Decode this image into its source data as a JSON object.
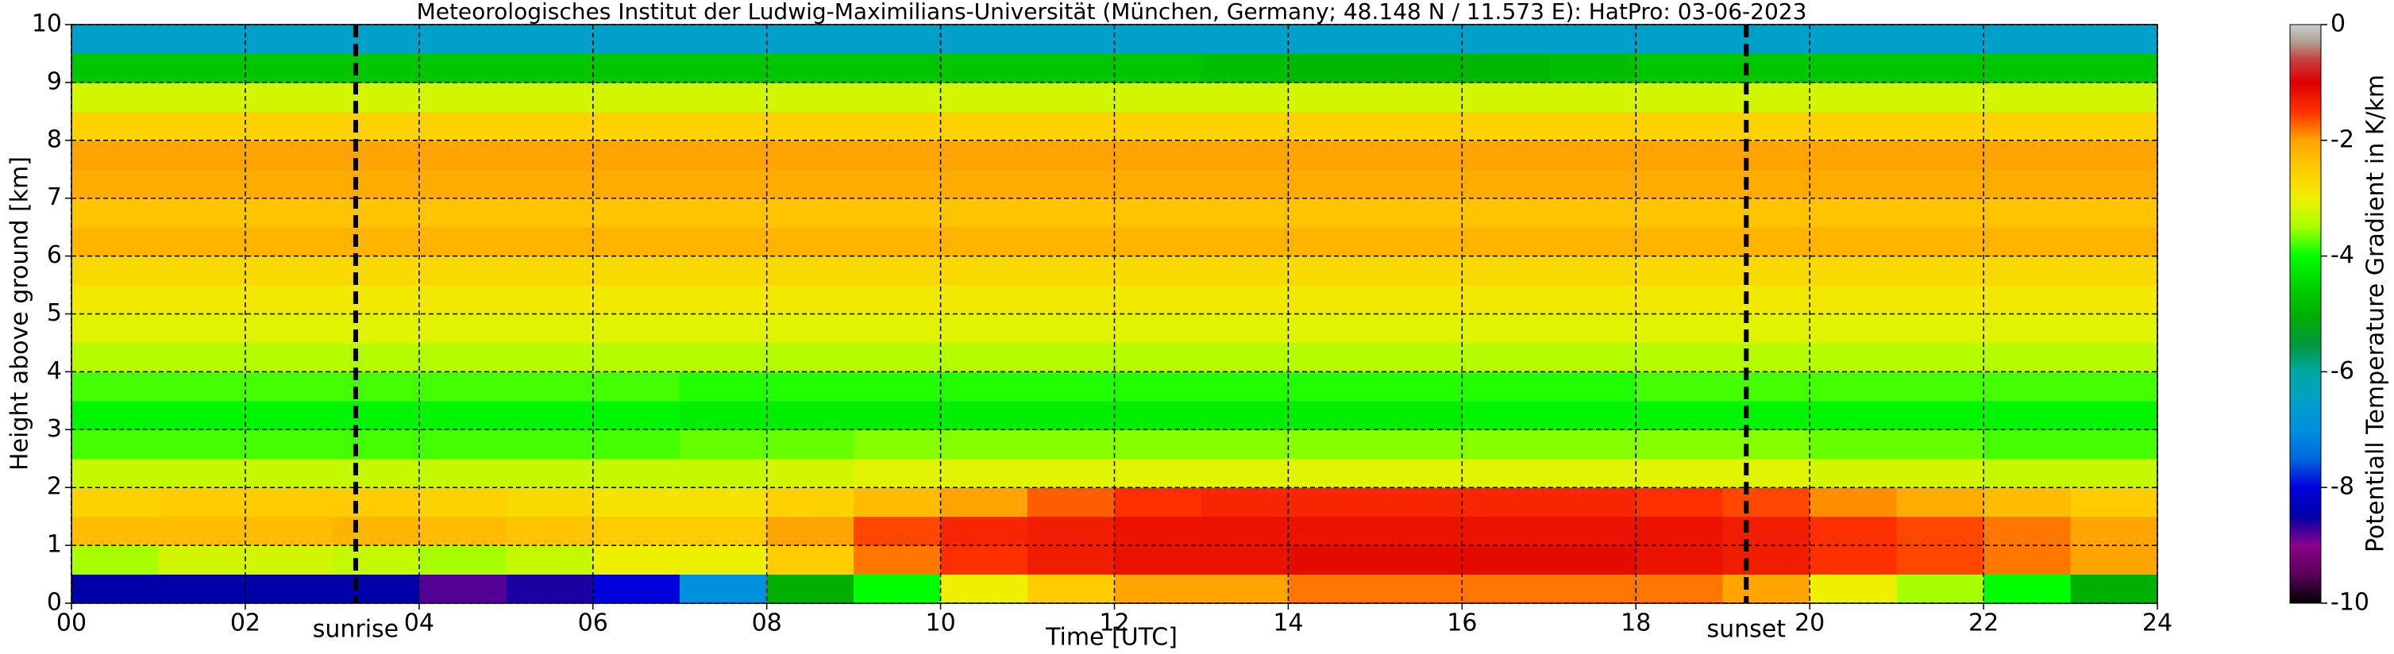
{
  "chart_data": {
    "type": "heatmap",
    "title": "Meteorologisches Institut der Ludwig-Maximilians-Universität (München, Germany; 48.148 N / 11.573 E):    HatPro: 03-06-2023",
    "xlabel": "Time [UTC]",
    "ylabel": "Height above ground [km]",
    "colorbar_label": "Potentiall Temperature Gradient in K/km",
    "xbins": [
      0,
      1,
      2,
      3,
      4,
      5,
      6,
      7,
      8,
      9,
      10,
      11,
      12,
      13,
      14,
      15,
      16,
      17,
      18,
      19,
      20,
      21,
      22,
      23,
      24
    ],
    "ybins": [
      0,
      0.5,
      1,
      1.5,
      2,
      2.5,
      3,
      3.5,
      4,
      4.5,
      5,
      5.5,
      6,
      6.5,
      7,
      7.5,
      8,
      8.5,
      9,
      9.5,
      10
    ],
    "values": [
      [
        -8.5,
        -8.5,
        -8.5,
        -8.5,
        -8.8,
        -8.6,
        -8,
        -7,
        -5,
        -4,
        -3,
        -2.5,
        -2,
        -2,
        -1.8,
        -1.8,
        -1.8,
        -1.8,
        -1.8,
        -2,
        -3,
        -3.5,
        -4,
        -5
      ],
      [
        -3.5,
        -3.2,
        -3.2,
        -3.3,
        -3.5,
        -3.3,
        -3,
        -3,
        -2.5,
        -1.8,
        -1.5,
        -1.3,
        -1.2,
        -1.2,
        -1.1,
        -1.1,
        -1.1,
        -1.1,
        -1.2,
        -1.3,
        -1.5,
        -1.6,
        -1.8,
        -2
      ],
      [
        -2.3,
        -2.3,
        -2.3,
        -2.2,
        -2.3,
        -2.4,
        -2.5,
        -2.5,
        -2,
        -1.6,
        -1.4,
        -1.3,
        -1.2,
        -1.2,
        -1.2,
        -1.2,
        -1.2,
        -1.2,
        -1.2,
        -1.3,
        -1.5,
        -1.6,
        -1.8,
        -2
      ],
      [
        -2.6,
        -2.5,
        -2.5,
        -2.5,
        -2.6,
        -2.7,
        -2.8,
        -2.8,
        -2.6,
        -2.3,
        -2,
        -1.7,
        -1.5,
        -1.4,
        -1.4,
        -1.4,
        -1.4,
        -1.4,
        -1.5,
        -1.6,
        -1.9,
        -2.1,
        -2.3,
        -2.5
      ],
      [
        -3.3,
        -3.3,
        -3.3,
        -3.3,
        -3.3,
        -3.3,
        -3.3,
        -3.3,
        -3.2,
        -3.1,
        -3.1,
        -3.1,
        -3.1,
        -3.1,
        -3.1,
        -3.1,
        -3.1,
        -3.1,
        -3.1,
        -3.1,
        -3.2,
        -3.2,
        -3.3,
        -3.3
      ],
      [
        -3.8,
        -3.8,
        -3.8,
        -3.8,
        -3.8,
        -3.8,
        -3.8,
        -3.7,
        -3.7,
        -3.6,
        -3.6,
        -3.6,
        -3.6,
        -3.6,
        -3.6,
        -3.6,
        -3.6,
        -3.6,
        -3.6,
        -3.6,
        -3.7,
        -3.7,
        -3.8,
        -3.8
      ],
      [
        -4.1,
        -4.1,
        -4.1,
        -4.1,
        -4.1,
        -4.1,
        -4.1,
        -4.2,
        -4.2,
        -4.2,
        -4.2,
        -4.2,
        -4.2,
        -4.2,
        -4.2,
        -4.2,
        -4.1,
        -4.1,
        -4.1,
        -4.1,
        -4.1,
        -4.1,
        -4.1,
        -4.1
      ],
      [
        -3.8,
        -3.8,
        -3.8,
        -3.8,
        -3.8,
        -3.8,
        -3.8,
        -3.9,
        -3.9,
        -3.9,
        -3.9,
        -3.9,
        -3.9,
        -3.9,
        -3.9,
        -3.9,
        -3.9,
        -3.9,
        -3.8,
        -3.8,
        -3.8,
        -3.8,
        -3.8,
        -3.8
      ],
      [
        -3.4,
        -3.4,
        -3.4,
        -3.4,
        -3.4,
        -3.4,
        -3.4,
        -3.4,
        -3.4,
        -3.4,
        -3.4,
        -3.4,
        -3.4,
        -3.4,
        -3.4,
        -3.4,
        -3.4,
        -3.4,
        -3.4,
        -3.4,
        -3.4,
        -3.4,
        -3.4,
        -3.4
      ],
      [
        -3.1,
        -3.1,
        -3.1,
        -3.1,
        -3.1,
        -3.1,
        -3.1,
        -3.1,
        -3.1,
        -3.1,
        -3.1,
        -3.1,
        -3.1,
        -3.1,
        -3.1,
        -3.1,
        -3.1,
        -3.1,
        -3.1,
        -3.1,
        -3.1,
        -3.1,
        -3.1,
        -3.1
      ],
      [
        -2.9,
        -2.9,
        -2.9,
        -2.9,
        -2.9,
        -2.9,
        -2.9,
        -2.9,
        -2.9,
        -2.9,
        -2.9,
        -2.9,
        -2.9,
        -2.9,
        -2.9,
        -2.9,
        -2.9,
        -2.9,
        -2.9,
        -2.9,
        -2.9,
        -2.9,
        -2.9,
        -2.9
      ],
      [
        -2.7,
        -2.7,
        -2.7,
        -2.7,
        -2.7,
        -2.7,
        -2.7,
        -2.7,
        -2.7,
        -2.7,
        -2.7,
        -2.7,
        -2.7,
        -2.7,
        -2.7,
        -2.7,
        -2.7,
        -2.7,
        -2.7,
        -2.7,
        -2.7,
        -2.7,
        -2.7,
        -2.7
      ],
      [
        -2.2,
        -2.2,
        -2.2,
        -2.2,
        -2.2,
        -2.2,
        -2.2,
        -2.2,
        -2.2,
        -2.2,
        -2.2,
        -2.2,
        -2.2,
        -2.2,
        -2.2,
        -2.2,
        -2.2,
        -2.2,
        -2.2,
        -2.2,
        -2.2,
        -2.2,
        -2.2,
        -2.2
      ],
      [
        -2.4,
        -2.4,
        -2.4,
        -2.4,
        -2.4,
        -2.4,
        -2.4,
        -2.4,
        -2.4,
        -2.4,
        -2.4,
        -2.4,
        -2.4,
        -2.4,
        -2.4,
        -2.4,
        -2.4,
        -2.4,
        -2.4,
        -2.4,
        -2.4,
        -2.4,
        -2.4,
        -2.4
      ],
      [
        -2.1,
        -2.1,
        -2.1,
        -2.1,
        -2.1,
        -2.1,
        -2.1,
        -2.1,
        -2.1,
        -2.1,
        -2.1,
        -2.1,
        -2.1,
        -2.1,
        -2.1,
        -2.1,
        -2.1,
        -2.1,
        -2.1,
        -2.1,
        -2.1,
        -2.1,
        -2.1,
        -2.1
      ],
      [
        -2,
        -2,
        -2,
        -2,
        -2,
        -2,
        -2,
        -2,
        -2,
        -2,
        -2,
        -2,
        -2,
        -2,
        -2,
        -2,
        -2,
        -2,
        -2,
        -2,
        -2,
        -2,
        -2,
        -2
      ],
      [
        -2.6,
        -2.6,
        -2.6,
        -2.6,
        -2.6,
        -2.6,
        -2.6,
        -2.6,
        -2.6,
        -2.6,
        -2.6,
        -2.6,
        -2.6,
        -2.6,
        -2.6,
        -2.6,
        -2.6,
        -2.6,
        -2.6,
        -2.6,
        -2.6,
        -2.6,
        -2.6,
        -2.6
      ],
      [
        -3.2,
        -3.2,
        -3.2,
        -3.2,
        -3.2,
        -3.2,
        -3.2,
        -3.2,
        -3.2,
        -3.2,
        -3.2,
        -3.2,
        -3.2,
        -3.2,
        -3.2,
        -3.2,
        -3.2,
        -3.2,
        -3.2,
        -3.2,
        -3.2,
        -3.2,
        -3.2,
        -3.2
      ],
      [
        -4.7,
        -4.7,
        -4.7,
        -4.7,
        -4.7,
        -4.7,
        -4.7,
        -4.7,
        -4.7,
        -4.7,
        -4.7,
        -4.7,
        -4.7,
        -4.8,
        -4.9,
        -4.9,
        -4.9,
        -4.8,
        -4.7,
        -4.7,
        -4.7,
        -4.7,
        -4.7,
        -4.7
      ],
      [
        -6.5,
        -6.5,
        -6.5,
        -6.5,
        -6.5,
        -6.5,
        -6.5,
        -6.5,
        -6.5,
        -6.5,
        -6.5,
        -6.5,
        -6.5,
        -6.5,
        -6.5,
        -6.5,
        -6.5,
        -6.5,
        -6.5,
        -6.5,
        -6.5,
        -6.5,
        -6.5,
        -6.5
      ]
    ],
    "xlim": [
      0,
      24
    ],
    "xticks": [
      {
        "value": 0,
        "label": "00"
      },
      {
        "value": 2,
        "label": "02"
      },
      {
        "value": 4,
        "label": "04"
      },
      {
        "value": 6,
        "label": "06"
      },
      {
        "value": 8,
        "label": "08"
      },
      10,
      12,
      14,
      16,
      18,
      20,
      22,
      24
    ],
    "ylim": [
      0,
      10
    ],
    "yticks": [
      0,
      1,
      2,
      3,
      4,
      5,
      6,
      7,
      8,
      9,
      10
    ],
    "clim": [
      -10,
      0
    ],
    "cticks": [
      -10,
      -8,
      -6,
      -4,
      -2,
      0
    ],
    "colorscale": [
      [
        -10,
        "#000000"
      ],
      [
        -9.5,
        "#5a005a"
      ],
      [
        -9,
        "#8b008b"
      ],
      [
        -8.5,
        "#0000a8"
      ],
      [
        -8,
        "#0000dd"
      ],
      [
        -7.5,
        "#0068dd"
      ],
      [
        -7,
        "#0090e0"
      ],
      [
        -6.5,
        "#00a0c8"
      ],
      [
        -6,
        "#00a8a0"
      ],
      [
        -5.5,
        "#009838"
      ],
      [
        -5,
        "#00b000"
      ],
      [
        -4.5,
        "#00d400"
      ],
      [
        -4,
        "#00ff00"
      ],
      [
        -3.5,
        "#a8ff00"
      ],
      [
        -3,
        "#eef000"
      ],
      [
        -2.5,
        "#ffcc00"
      ],
      [
        -2,
        "#ffa400"
      ],
      [
        -1.5,
        "#ff3000"
      ],
      [
        -1,
        "#dd0000"
      ],
      [
        -0.6,
        "#c84040"
      ],
      [
        -0.3,
        "#b0a090"
      ],
      [
        0,
        "#cccccc"
      ]
    ],
    "grid": true,
    "annotations": [
      {
        "text": "sunrise",
        "x": 3.27
      },
      {
        "text": "sunset",
        "x": 19.27
      }
    ]
  }
}
